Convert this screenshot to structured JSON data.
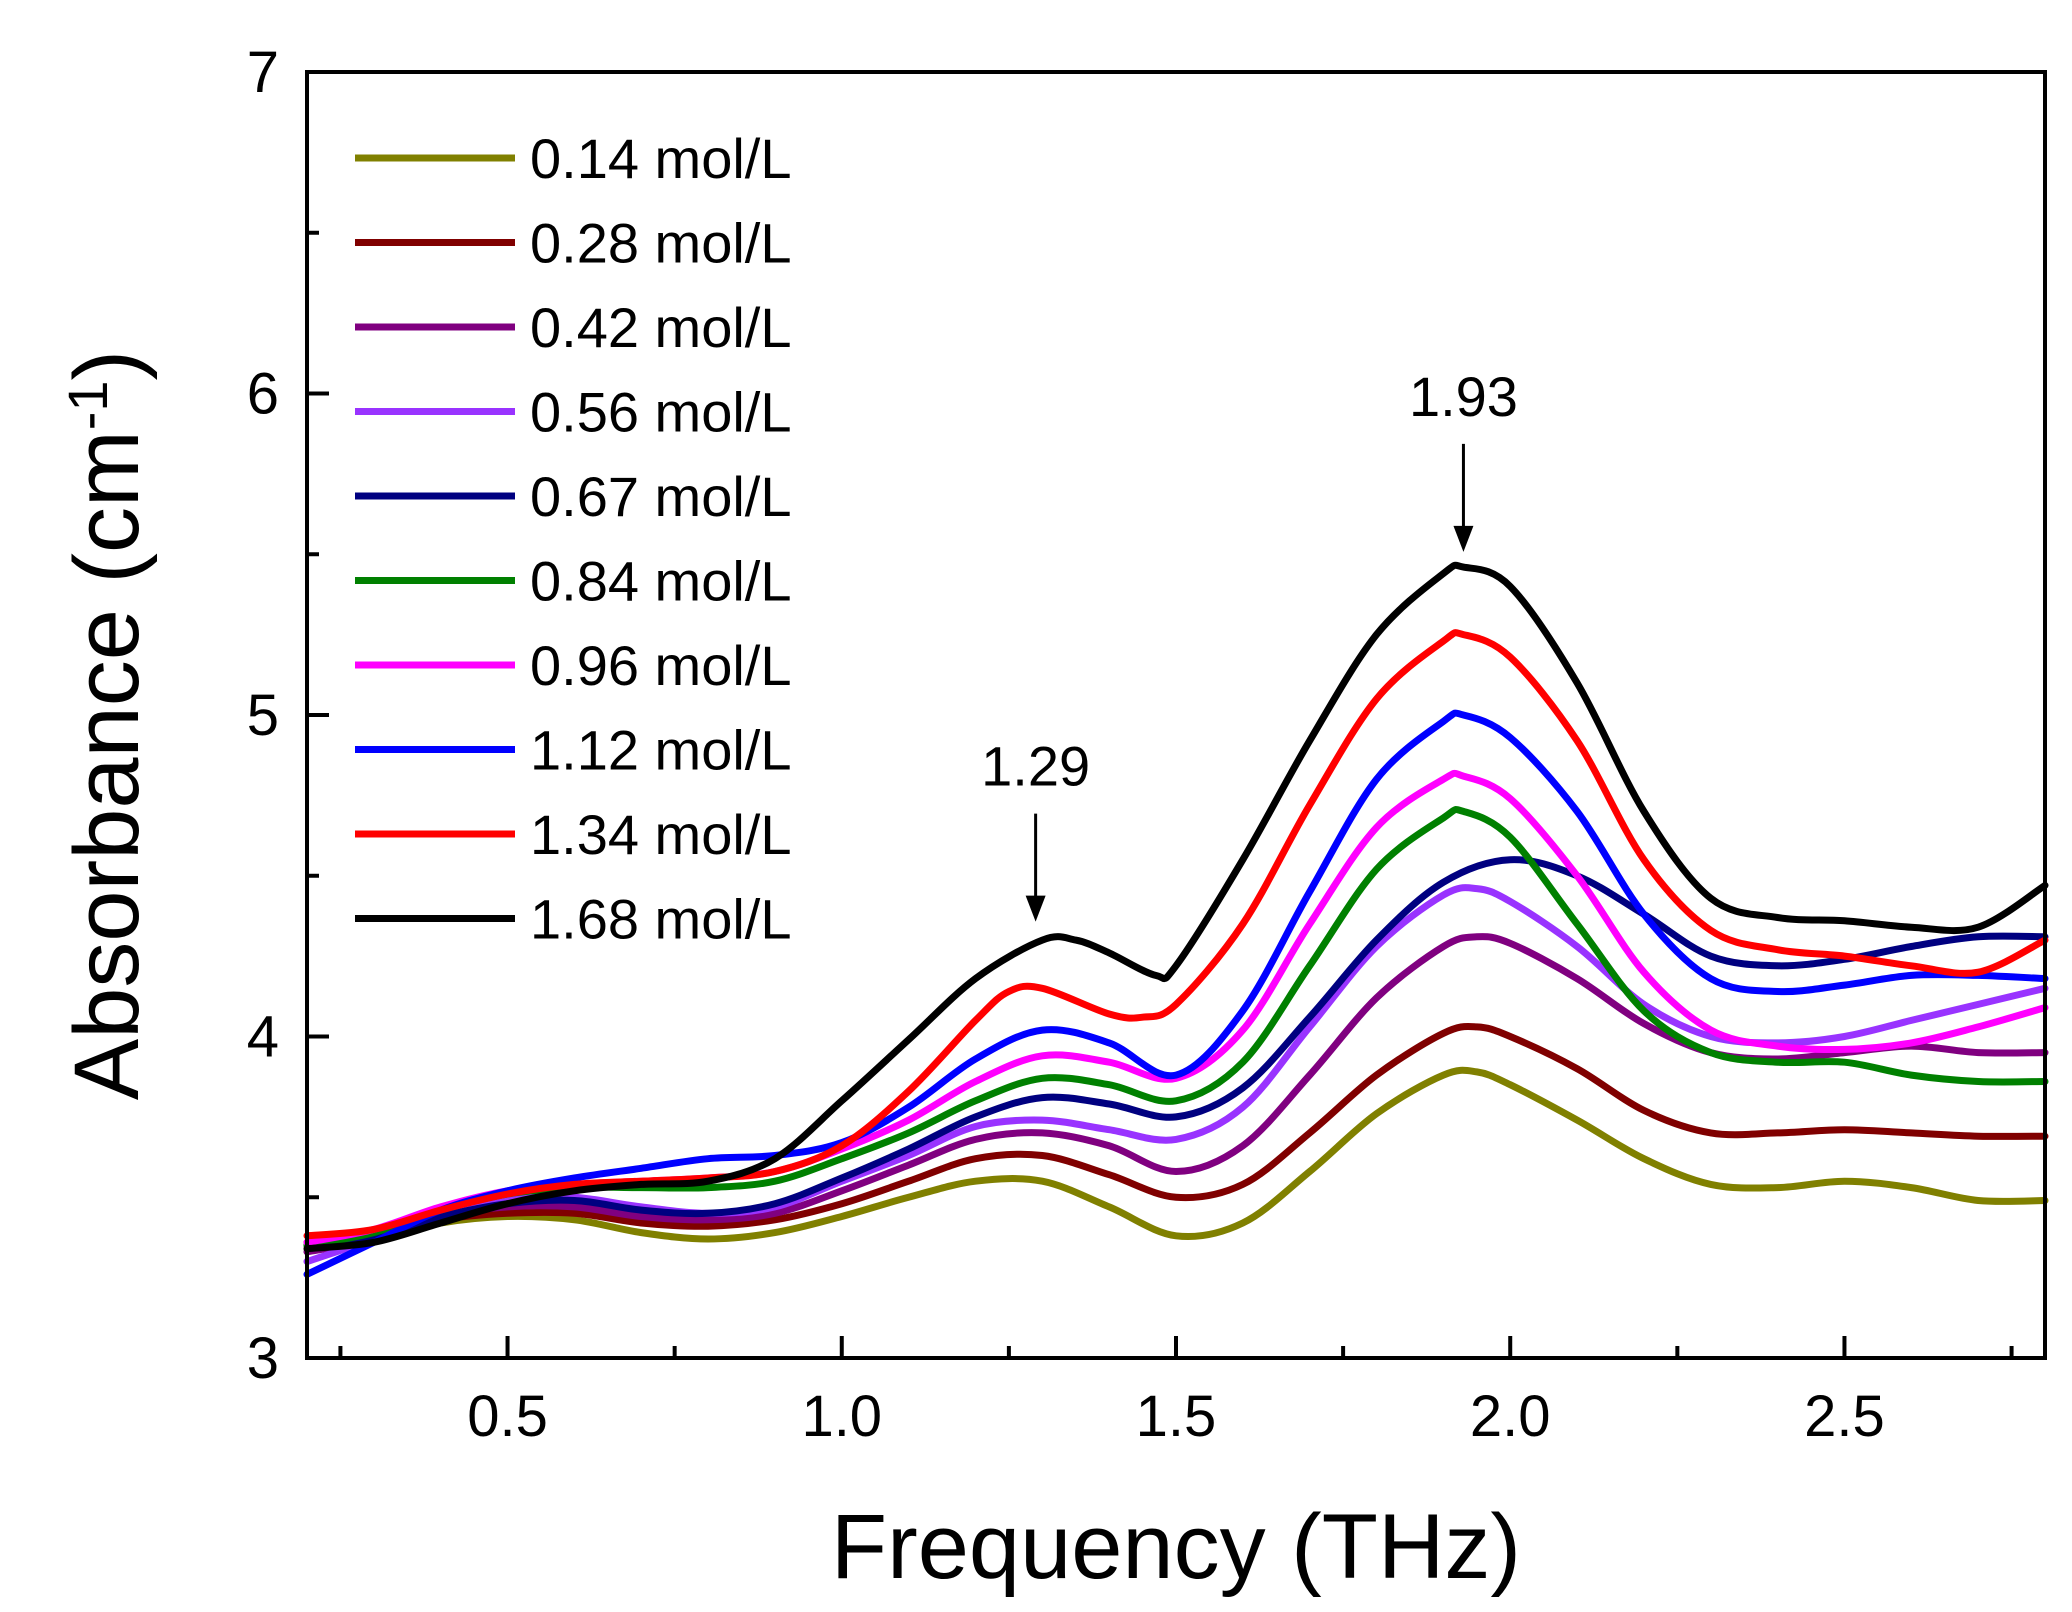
{
  "chart_data": {
    "type": "line",
    "xlabel": "Frequency (THz)",
    "ylabel_main": "Absorbance (cm",
    "ylabel_sup": "-1",
    "ylabel_close": ")",
    "xlim": [
      0.2,
      2.8
    ],
    "ylim": [
      3,
      7
    ],
    "xticks": [
      0.5,
      1.0,
      1.5,
      2.0,
      2.5
    ],
    "xtick_labels": [
      "0.5",
      "1.0",
      "1.5",
      "2.0",
      "2.5"
    ],
    "yticks": [
      3,
      4,
      5,
      6,
      7
    ],
    "ytick_labels": [
      "3",
      "4",
      "5",
      "6",
      "7"
    ],
    "grid": false,
    "legend_position": "top-left",
    "annotations": [
      {
        "label": "1.29",
        "x": 1.29,
        "y_point": 4.32
      },
      {
        "label": "1.93",
        "x": 1.93,
        "y_point": 5.47
      }
    ],
    "series": [
      {
        "name": "0.14 mol/L",
        "color": "#808000",
        "points": [
          [
            0.2,
            3.34
          ],
          [
            0.3,
            3.37
          ],
          [
            0.4,
            3.42
          ],
          [
            0.5,
            3.44
          ],
          [
            0.6,
            3.43
          ],
          [
            0.7,
            3.39
          ],
          [
            0.8,
            3.37
          ],
          [
            0.9,
            3.39
          ],
          [
            1.0,
            3.44
          ],
          [
            1.1,
            3.5
          ],
          [
            1.2,
            3.55
          ],
          [
            1.3,
            3.55
          ],
          [
            1.4,
            3.47
          ],
          [
            1.5,
            3.38
          ],
          [
            1.6,
            3.42
          ],
          [
            1.7,
            3.58
          ],
          [
            1.8,
            3.76
          ],
          [
            1.9,
            3.88
          ],
          [
            1.95,
            3.89
          ],
          [
            2.0,
            3.85
          ],
          [
            2.1,
            3.74
          ],
          [
            2.2,
            3.62
          ],
          [
            2.3,
            3.54
          ],
          [
            2.4,
            3.53
          ],
          [
            2.5,
            3.55
          ],
          [
            2.6,
            3.53
          ],
          [
            2.7,
            3.49
          ],
          [
            2.8,
            3.49
          ]
        ]
      },
      {
        "name": "0.28 mol/L",
        "color": "#800000",
        "points": [
          [
            0.2,
            3.36
          ],
          [
            0.3,
            3.38
          ],
          [
            0.4,
            3.43
          ],
          [
            0.5,
            3.45
          ],
          [
            0.6,
            3.45
          ],
          [
            0.7,
            3.42
          ],
          [
            0.8,
            3.41
          ],
          [
            0.9,
            3.43
          ],
          [
            1.0,
            3.48
          ],
          [
            1.1,
            3.55
          ],
          [
            1.2,
            3.62
          ],
          [
            1.3,
            3.63
          ],
          [
            1.4,
            3.57
          ],
          [
            1.5,
            3.5
          ],
          [
            1.6,
            3.54
          ],
          [
            1.7,
            3.7
          ],
          [
            1.8,
            3.88
          ],
          [
            1.9,
            4.01
          ],
          [
            1.95,
            4.03
          ],
          [
            2.0,
            4.0
          ],
          [
            2.1,
            3.9
          ],
          [
            2.2,
            3.77
          ],
          [
            2.3,
            3.7
          ],
          [
            2.4,
            3.7
          ],
          [
            2.5,
            3.71
          ],
          [
            2.6,
            3.7
          ],
          [
            2.7,
            3.69
          ],
          [
            2.8,
            3.69
          ]
        ]
      },
      {
        "name": "0.42 mol/L",
        "color": "#800080",
        "points": [
          [
            0.2,
            3.33
          ],
          [
            0.3,
            3.37
          ],
          [
            0.4,
            3.44
          ],
          [
            0.5,
            3.47
          ],
          [
            0.6,
            3.47
          ],
          [
            0.7,
            3.44
          ],
          [
            0.8,
            3.43
          ],
          [
            0.9,
            3.45
          ],
          [
            1.0,
            3.52
          ],
          [
            1.1,
            3.6
          ],
          [
            1.2,
            3.68
          ],
          [
            1.3,
            3.7
          ],
          [
            1.4,
            3.66
          ],
          [
            1.5,
            3.58
          ],
          [
            1.6,
            3.66
          ],
          [
            1.7,
            3.88
          ],
          [
            1.8,
            4.12
          ],
          [
            1.9,
            4.28
          ],
          [
            1.95,
            4.31
          ],
          [
            2.0,
            4.29
          ],
          [
            2.1,
            4.18
          ],
          [
            2.2,
            4.04
          ],
          [
            2.3,
            3.95
          ],
          [
            2.4,
            3.93
          ],
          [
            2.5,
            3.95
          ],
          [
            2.6,
            3.97
          ],
          [
            2.7,
            3.95
          ],
          [
            2.8,
            3.95
          ]
        ]
      },
      {
        "name": "0.56 mol/L",
        "color": "#9933ff",
        "points": [
          [
            0.2,
            3.3
          ],
          [
            0.3,
            3.37
          ],
          [
            0.4,
            3.45
          ],
          [
            0.5,
            3.5
          ],
          [
            0.6,
            3.5
          ],
          [
            0.7,
            3.47
          ],
          [
            0.8,
            3.45
          ],
          [
            0.9,
            3.47
          ],
          [
            1.0,
            3.55
          ],
          [
            1.1,
            3.63
          ],
          [
            1.2,
            3.72
          ],
          [
            1.3,
            3.74
          ],
          [
            1.4,
            3.71
          ],
          [
            1.5,
            3.68
          ],
          [
            1.6,
            3.78
          ],
          [
            1.7,
            4.03
          ],
          [
            1.8,
            4.28
          ],
          [
            1.9,
            4.44
          ],
          [
            1.95,
            4.46
          ],
          [
            2.0,
            4.42
          ],
          [
            2.1,
            4.28
          ],
          [
            2.2,
            4.1
          ],
          [
            2.3,
            4.0
          ],
          [
            2.4,
            3.98
          ],
          [
            2.5,
            4.0
          ],
          [
            2.6,
            4.05
          ],
          [
            2.7,
            4.1
          ],
          [
            2.8,
            4.15
          ]
        ]
      },
      {
        "name": "0.67 mol/L",
        "color": "#000080",
        "points": [
          [
            0.2,
            3.35
          ],
          [
            0.3,
            3.38
          ],
          [
            0.4,
            3.44
          ],
          [
            0.5,
            3.48
          ],
          [
            0.6,
            3.49
          ],
          [
            0.7,
            3.46
          ],
          [
            0.8,
            3.45
          ],
          [
            0.9,
            3.48
          ],
          [
            1.0,
            3.56
          ],
          [
            1.1,
            3.65
          ],
          [
            1.2,
            3.75
          ],
          [
            1.3,
            3.81
          ],
          [
            1.4,
            3.79
          ],
          [
            1.5,
            3.75
          ],
          [
            1.6,
            3.84
          ],
          [
            1.7,
            4.06
          ],
          [
            1.8,
            4.3
          ],
          [
            1.9,
            4.48
          ],
          [
            2.0,
            4.55
          ],
          [
            2.1,
            4.5
          ],
          [
            2.2,
            4.38
          ],
          [
            2.3,
            4.25
          ],
          [
            2.4,
            4.22
          ],
          [
            2.5,
            4.24
          ],
          [
            2.6,
            4.28
          ],
          [
            2.7,
            4.31
          ],
          [
            2.8,
            4.31
          ]
        ]
      },
      {
        "name": "0.84 mol/L",
        "color": "#008000",
        "points": [
          [
            0.2,
            3.35
          ],
          [
            0.3,
            3.39
          ],
          [
            0.4,
            3.46
          ],
          [
            0.5,
            3.51
          ],
          [
            0.6,
            3.53
          ],
          [
            0.7,
            3.53
          ],
          [
            0.8,
            3.53
          ],
          [
            0.9,
            3.55
          ],
          [
            1.0,
            3.62
          ],
          [
            1.1,
            3.7
          ],
          [
            1.2,
            3.8
          ],
          [
            1.3,
            3.87
          ],
          [
            1.4,
            3.85
          ],
          [
            1.5,
            3.8
          ],
          [
            1.6,
            3.92
          ],
          [
            1.7,
            4.22
          ],
          [
            1.8,
            4.52
          ],
          [
            1.9,
            4.68
          ],
          [
            1.93,
            4.7
          ],
          [
            2.0,
            4.62
          ],
          [
            2.1,
            4.35
          ],
          [
            2.2,
            4.08
          ],
          [
            2.3,
            3.95
          ],
          [
            2.4,
            3.92
          ],
          [
            2.5,
            3.92
          ],
          [
            2.6,
            3.88
          ],
          [
            2.7,
            3.86
          ],
          [
            2.8,
            3.86
          ]
        ]
      },
      {
        "name": "0.96 mol/L",
        "color": "#ff00ff",
        "points": [
          [
            0.2,
            3.36
          ],
          [
            0.3,
            3.4
          ],
          [
            0.4,
            3.47
          ],
          [
            0.5,
            3.52
          ],
          [
            0.6,
            3.54
          ],
          [
            0.7,
            3.55
          ],
          [
            0.8,
            3.56
          ],
          [
            0.9,
            3.58
          ],
          [
            1.0,
            3.65
          ],
          [
            1.1,
            3.74
          ],
          [
            1.2,
            3.86
          ],
          [
            1.3,
            3.94
          ],
          [
            1.4,
            3.92
          ],
          [
            1.5,
            3.87
          ],
          [
            1.6,
            4.02
          ],
          [
            1.7,
            4.35
          ],
          [
            1.8,
            4.65
          ],
          [
            1.9,
            4.8
          ],
          [
            1.93,
            4.81
          ],
          [
            2.0,
            4.74
          ],
          [
            2.1,
            4.5
          ],
          [
            2.2,
            4.2
          ],
          [
            2.3,
            4.02
          ],
          [
            2.4,
            3.97
          ],
          [
            2.5,
            3.96
          ],
          [
            2.6,
            3.98
          ],
          [
            2.7,
            4.03
          ],
          [
            2.8,
            4.09
          ]
        ]
      },
      {
        "name": "1.12 mol/L",
        "color": "#0000ff",
        "points": [
          [
            0.2,
            3.26
          ],
          [
            0.3,
            3.36
          ],
          [
            0.4,
            3.46
          ],
          [
            0.5,
            3.52
          ],
          [
            0.6,
            3.56
          ],
          [
            0.7,
            3.59
          ],
          [
            0.8,
            3.62
          ],
          [
            0.9,
            3.63
          ],
          [
            1.0,
            3.67
          ],
          [
            1.1,
            3.78
          ],
          [
            1.2,
            3.93
          ],
          [
            1.3,
            4.02
          ],
          [
            1.4,
            3.98
          ],
          [
            1.5,
            3.88
          ],
          [
            1.6,
            4.08
          ],
          [
            1.7,
            4.45
          ],
          [
            1.8,
            4.8
          ],
          [
            1.9,
            4.98
          ],
          [
            1.93,
            5.0
          ],
          [
            2.0,
            4.93
          ],
          [
            2.1,
            4.7
          ],
          [
            2.2,
            4.38
          ],
          [
            2.3,
            4.18
          ],
          [
            2.4,
            4.14
          ],
          [
            2.5,
            4.16
          ],
          [
            2.6,
            4.19
          ],
          [
            2.7,
            4.19
          ],
          [
            2.8,
            4.18
          ]
        ]
      },
      {
        "name": "1.34 mol/L",
        "color": "#ff0000",
        "points": [
          [
            0.2,
            3.38
          ],
          [
            0.3,
            3.4
          ],
          [
            0.4,
            3.46
          ],
          [
            0.5,
            3.51
          ],
          [
            0.6,
            3.54
          ],
          [
            0.7,
            3.55
          ],
          [
            0.8,
            3.56
          ],
          [
            0.9,
            3.58
          ],
          [
            1.0,
            3.66
          ],
          [
            1.1,
            3.83
          ],
          [
            1.2,
            4.05
          ],
          [
            1.25,
            4.14
          ],
          [
            1.3,
            4.15
          ],
          [
            1.4,
            4.07
          ],
          [
            1.45,
            4.06
          ],
          [
            1.5,
            4.1
          ],
          [
            1.6,
            4.35
          ],
          [
            1.7,
            4.72
          ],
          [
            1.8,
            5.05
          ],
          [
            1.9,
            5.23
          ],
          [
            1.93,
            5.25
          ],
          [
            2.0,
            5.18
          ],
          [
            2.1,
            4.92
          ],
          [
            2.2,
            4.55
          ],
          [
            2.3,
            4.33
          ],
          [
            2.4,
            4.27
          ],
          [
            2.5,
            4.25
          ],
          [
            2.6,
            4.22
          ],
          [
            2.7,
            4.2
          ],
          [
            2.8,
            4.3
          ]
        ]
      },
      {
        "name": "1.68 mol/L",
        "color": "#000000",
        "points": [
          [
            0.2,
            3.34
          ],
          [
            0.3,
            3.36
          ],
          [
            0.4,
            3.42
          ],
          [
            0.5,
            3.48
          ],
          [
            0.6,
            3.52
          ],
          [
            0.7,
            3.54
          ],
          [
            0.8,
            3.55
          ],
          [
            0.9,
            3.62
          ],
          [
            1.0,
            3.8
          ],
          [
            1.1,
            3.99
          ],
          [
            1.2,
            4.18
          ],
          [
            1.3,
            4.3
          ],
          [
            1.35,
            4.3
          ],
          [
            1.4,
            4.26
          ],
          [
            1.47,
            4.19
          ],
          [
            1.5,
            4.22
          ],
          [
            1.6,
            4.55
          ],
          [
            1.7,
            4.92
          ],
          [
            1.8,
            5.25
          ],
          [
            1.9,
            5.44
          ],
          [
            1.93,
            5.46
          ],
          [
            2.0,
            5.4
          ],
          [
            2.1,
            5.1
          ],
          [
            2.2,
            4.7
          ],
          [
            2.3,
            4.43
          ],
          [
            2.4,
            4.37
          ],
          [
            2.5,
            4.36
          ],
          [
            2.6,
            4.34
          ],
          [
            2.7,
            4.34
          ],
          [
            2.8,
            4.47
          ]
        ]
      }
    ]
  }
}
